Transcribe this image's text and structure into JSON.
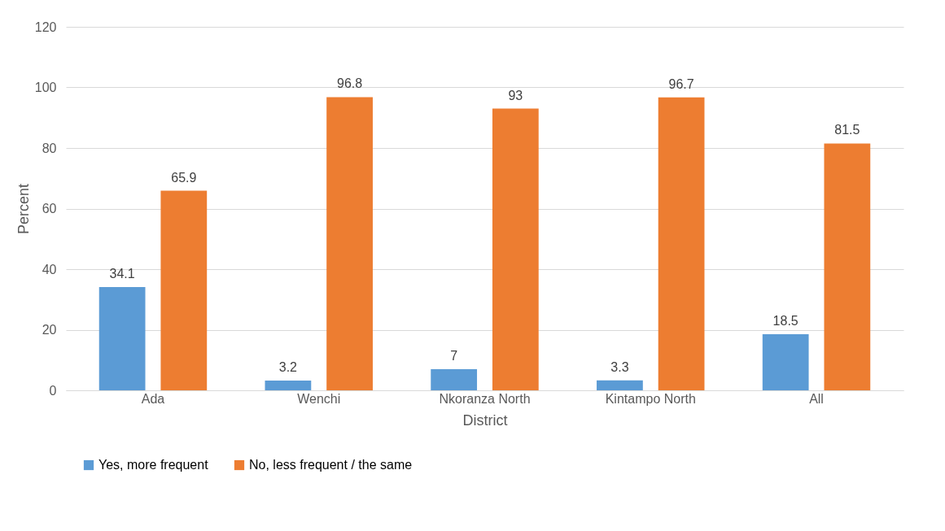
{
  "chart_data": {
    "type": "bar",
    "xlabel": "District",
    "ylabel": "Percent",
    "categories": [
      "Ada",
      "Wenchi",
      "Nkoranza North",
      "Kintampo North",
      "All"
    ],
    "series": [
      {
        "name": "Yes, more frequent",
        "color": "#5b9bd5",
        "values": [
          34.1,
          3.2,
          7,
          3.3,
          18.5
        ]
      },
      {
        "name": "No, less frequent / the same",
        "color": "#ed7d31",
        "values": [
          65.9,
          96.8,
          93,
          96.7,
          81.5
        ]
      }
    ],
    "ylim": [
      0,
      120
    ],
    "yticks": [
      0,
      20,
      40,
      60,
      80,
      100,
      120
    ],
    "grid": "y",
    "legend": "bottom",
    "data_labels": true
  }
}
